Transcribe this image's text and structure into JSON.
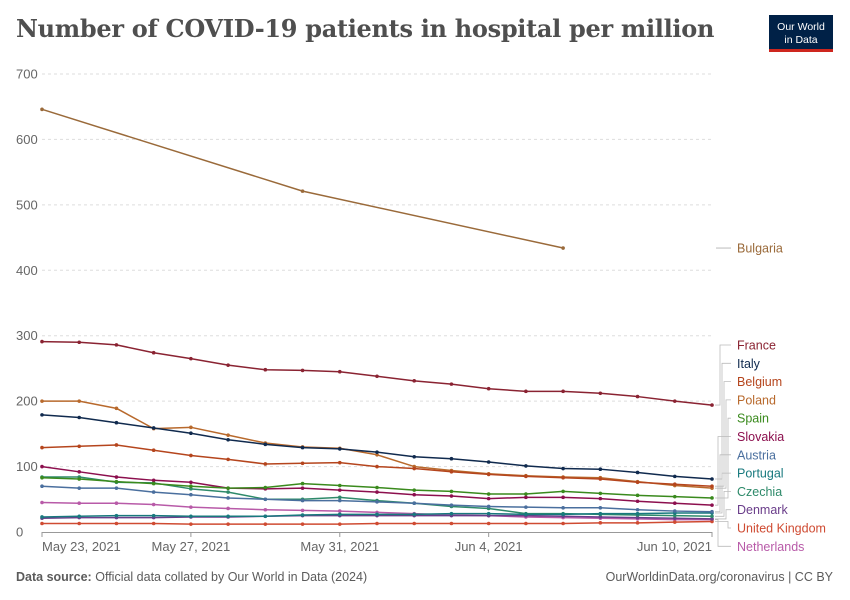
{
  "header": {
    "title": "Number of COVID-19 patients in hospital per million",
    "logo_line1": "Our World",
    "logo_line2": "in Data"
  },
  "footer": {
    "source_label": "Data source:",
    "source_text": "Official data collated by Our World in Data (2024)",
    "right_text": "OurWorldinData.org/coronavirus | CC BY"
  },
  "chart_data": {
    "type": "line",
    "title": "Number of COVID-19 patients in hospital per million",
    "xlabel": "",
    "ylabel": "",
    "x_range": [
      "2021-05-23",
      "2021-06-10"
    ],
    "ylim": [
      0,
      700
    ],
    "y_ticks": [
      0,
      100,
      200,
      300,
      400,
      500,
      600,
      700
    ],
    "x_ticks": [
      {
        "date": "2021-05-23",
        "label": "May 23, 2021"
      },
      {
        "date": "2021-05-27",
        "label": "May 27, 2021"
      },
      {
        "date": "2021-05-31",
        "label": "May 31, 2021"
      },
      {
        "date": "2021-06-04",
        "label": "Jun 4, 2021"
      },
      {
        "date": "2021-06-10",
        "label": "Jun 10, 2021"
      }
    ],
    "grid": "horizontal dashed",
    "legend": "right, end labels",
    "series": [
      {
        "name": "Bulgaria",
        "color": "#9a6a3a",
        "x": [
          "2021-05-23",
          "2021-05-30",
          "2021-06-06"
        ],
        "y": [
          646,
          521,
          434
        ]
      },
      {
        "name": "France",
        "color": "#8a2332",
        "x": [
          "2021-05-23",
          "2021-05-24",
          "2021-05-25",
          "2021-05-26",
          "2021-05-27",
          "2021-05-28",
          "2021-05-29",
          "2021-05-30",
          "2021-05-31",
          "2021-06-01",
          "2021-06-02",
          "2021-06-03",
          "2021-06-04",
          "2021-06-05",
          "2021-06-06",
          "2021-06-07",
          "2021-06-08",
          "2021-06-09",
          "2021-06-10"
        ],
        "y": [
          291,
          290,
          286,
          274,
          265,
          255,
          248,
          247,
          245,
          238,
          231,
          226,
          219,
          215,
          215,
          212,
          207,
          200,
          194
        ]
      },
      {
        "name": "Italy",
        "color": "#102a4e",
        "x": [
          "2021-05-23",
          "2021-05-24",
          "2021-05-25",
          "2021-05-26",
          "2021-05-27",
          "2021-05-28",
          "2021-05-29",
          "2021-05-30",
          "2021-05-31",
          "2021-06-01",
          "2021-06-02",
          "2021-06-03",
          "2021-06-04",
          "2021-06-05",
          "2021-06-06",
          "2021-06-07",
          "2021-06-08",
          "2021-06-09",
          "2021-06-10"
        ],
        "y": [
          179,
          175,
          167,
          159,
          151,
          141,
          134,
          129,
          127,
          122,
          115,
          112,
          107,
          101,
          97,
          96,
          91,
          85,
          81
        ]
      },
      {
        "name": "Belgium",
        "color": "#b5451d",
        "x": [
          "2021-05-23",
          "2021-05-24",
          "2021-05-25",
          "2021-05-26",
          "2021-05-27",
          "2021-05-28",
          "2021-05-29",
          "2021-05-30",
          "2021-05-31",
          "2021-06-01",
          "2021-06-02",
          "2021-06-03",
          "2021-06-04",
          "2021-06-05",
          "2021-06-06",
          "2021-06-07",
          "2021-06-08",
          "2021-06-09",
          "2021-06-10"
        ],
        "y": [
          129,
          131,
          133,
          125,
          117,
          111,
          104,
          105,
          106,
          100,
          97,
          92,
          88,
          85,
          83,
          81,
          76,
          73,
          70
        ]
      },
      {
        "name": "Poland",
        "color": "#b8692c",
        "x": [
          "2021-05-23",
          "2021-05-24",
          "2021-05-25",
          "2021-05-26",
          "2021-05-27",
          "2021-05-28",
          "2021-05-29",
          "2021-05-30",
          "2021-05-31",
          "2021-06-01",
          "2021-06-02",
          "2021-06-03",
          "2021-06-04",
          "2021-06-05",
          "2021-06-06",
          "2021-06-07",
          "2021-06-08",
          "2021-06-09",
          "2021-06-10"
        ],
        "y": [
          200,
          200,
          189,
          158,
          160,
          148,
          136,
          130,
          128,
          118,
          100,
          94,
          89,
          86,
          84,
          83,
          77,
          71,
          67
        ]
      },
      {
        "name": "Spain",
        "color": "#3a8a1d",
        "x": [
          "2021-05-23",
          "2021-05-24",
          "2021-05-25",
          "2021-05-26",
          "2021-05-27",
          "2021-05-28",
          "2021-05-29",
          "2021-05-30",
          "2021-05-31",
          "2021-06-01",
          "2021-06-02",
          "2021-06-03",
          "2021-06-04",
          "2021-06-05",
          "2021-06-06",
          "2021-06-07",
          "2021-06-08",
          "2021-06-09",
          "2021-06-10"
        ],
        "y": [
          83,
          81,
          77,
          74,
          70,
          67,
          68,
          74,
          71,
          68,
          64,
          62,
          58,
          58,
          62,
          59,
          56,
          54,
          52
        ]
      },
      {
        "name": "Slovakia",
        "color": "#8c0f4e",
        "x": [
          "2021-05-23",
          "2021-05-24",
          "2021-05-25",
          "2021-05-26",
          "2021-05-27",
          "2021-05-28",
          "2021-05-29",
          "2021-05-30",
          "2021-05-31",
          "2021-06-01",
          "2021-06-02",
          "2021-06-03",
          "2021-06-04",
          "2021-06-05",
          "2021-06-06",
          "2021-06-07",
          "2021-06-08",
          "2021-06-09",
          "2021-06-10"
        ],
        "y": [
          100,
          92,
          84,
          79,
          76,
          67,
          66,
          67,
          64,
          61,
          57,
          55,
          51,
          53,
          53,
          51,
          47,
          44,
          41
        ]
      },
      {
        "name": "Austria",
        "color": "#4a6f9e",
        "x": [
          "2021-05-23",
          "2021-05-24",
          "2021-05-25",
          "2021-05-26",
          "2021-05-27",
          "2021-05-28",
          "2021-05-29",
          "2021-05-30",
          "2021-05-31",
          "2021-06-01",
          "2021-06-02",
          "2021-06-03",
          "2021-06-04",
          "2021-06-05",
          "2021-06-06",
          "2021-06-07",
          "2021-06-08",
          "2021-06-09",
          "2021-06-10"
        ],
        "y": [
          70,
          67,
          67,
          61,
          57,
          52,
          50,
          48,
          48,
          46,
          44,
          41,
          39,
          38,
          37,
          37,
          34,
          32,
          31
        ]
      },
      {
        "name": "Portugal",
        "color": "#18797e",
        "x": [
          "2021-05-23",
          "2021-05-24",
          "2021-05-25",
          "2021-05-26",
          "2021-05-27",
          "2021-05-28",
          "2021-05-29",
          "2021-05-30",
          "2021-05-31",
          "2021-06-01",
          "2021-06-02",
          "2021-06-03",
          "2021-06-04",
          "2021-06-05",
          "2021-06-06",
          "2021-06-07",
          "2021-06-08",
          "2021-06-09",
          "2021-06-10"
        ],
        "y": [
          23,
          24,
          25,
          25,
          24,
          24,
          24,
          26,
          27,
          27,
          27,
          28,
          28,
          27,
          27,
          28,
          28,
          29,
          29
        ]
      },
      {
        "name": "Czechia",
        "color": "#2e8a6a",
        "x": [
          "2021-05-23",
          "2021-05-24",
          "2021-05-25",
          "2021-05-26",
          "2021-05-27",
          "2021-05-28",
          "2021-05-29",
          "2021-05-30",
          "2021-05-31",
          "2021-06-01",
          "2021-06-02",
          "2021-06-03",
          "2021-06-04",
          "2021-06-05",
          "2021-06-06",
          "2021-06-07",
          "2021-06-08",
          "2021-06-09",
          "2021-06-10"
        ],
        "y": [
          84,
          84,
          76,
          75,
          66,
          61,
          50,
          50,
          53,
          48,
          44,
          39,
          36,
          28,
          28,
          27,
          26,
          25,
          24
        ]
      },
      {
        "name": "Denmark",
        "color": "#6a3d8a",
        "x": [
          "2021-05-23",
          "2021-05-24",
          "2021-05-25",
          "2021-05-26",
          "2021-05-27",
          "2021-05-28",
          "2021-05-29",
          "2021-05-30",
          "2021-05-31",
          "2021-06-01",
          "2021-06-02",
          "2021-06-03",
          "2021-06-04",
          "2021-06-05",
          "2021-06-06",
          "2021-06-07",
          "2021-06-08",
          "2021-06-09",
          "2021-06-10"
        ],
        "y": [
          21,
          22,
          22,
          22,
          23,
          23,
          24,
          25,
          25,
          25,
          25,
          25,
          25,
          25,
          24,
          23,
          22,
          21,
          20
        ]
      },
      {
        "name": "United Kingdom",
        "color": "#cf4b32",
        "x": [
          "2021-05-23",
          "2021-05-24",
          "2021-05-25",
          "2021-05-26",
          "2021-05-27",
          "2021-05-28",
          "2021-05-29",
          "2021-05-30",
          "2021-05-31",
          "2021-06-01",
          "2021-06-02",
          "2021-06-03",
          "2021-06-04",
          "2021-06-05",
          "2021-06-06",
          "2021-06-07",
          "2021-06-08",
          "2021-06-09",
          "2021-06-10"
        ],
        "y": [
          13,
          13,
          13,
          13,
          12,
          12,
          12,
          12,
          12,
          13,
          13,
          13,
          13,
          13,
          13,
          14,
          14,
          15,
          16
        ]
      },
      {
        "name": "Netherlands",
        "color": "#b85aa8",
        "x": [
          "2021-05-23",
          "2021-05-24",
          "2021-05-25",
          "2021-05-26",
          "2021-05-27",
          "2021-05-28",
          "2021-05-29",
          "2021-05-30",
          "2021-05-31",
          "2021-06-01",
          "2021-06-02",
          "2021-06-03",
          "2021-06-04",
          "2021-06-05",
          "2021-06-06",
          "2021-06-07",
          "2021-06-08",
          "2021-06-09",
          "2021-06-10"
        ],
        "y": [
          45,
          44,
          44,
          42,
          38,
          36,
          34,
          33,
          32,
          30,
          28,
          26,
          25,
          23,
          22,
          21,
          20,
          19,
          19
        ]
      }
    ]
  }
}
